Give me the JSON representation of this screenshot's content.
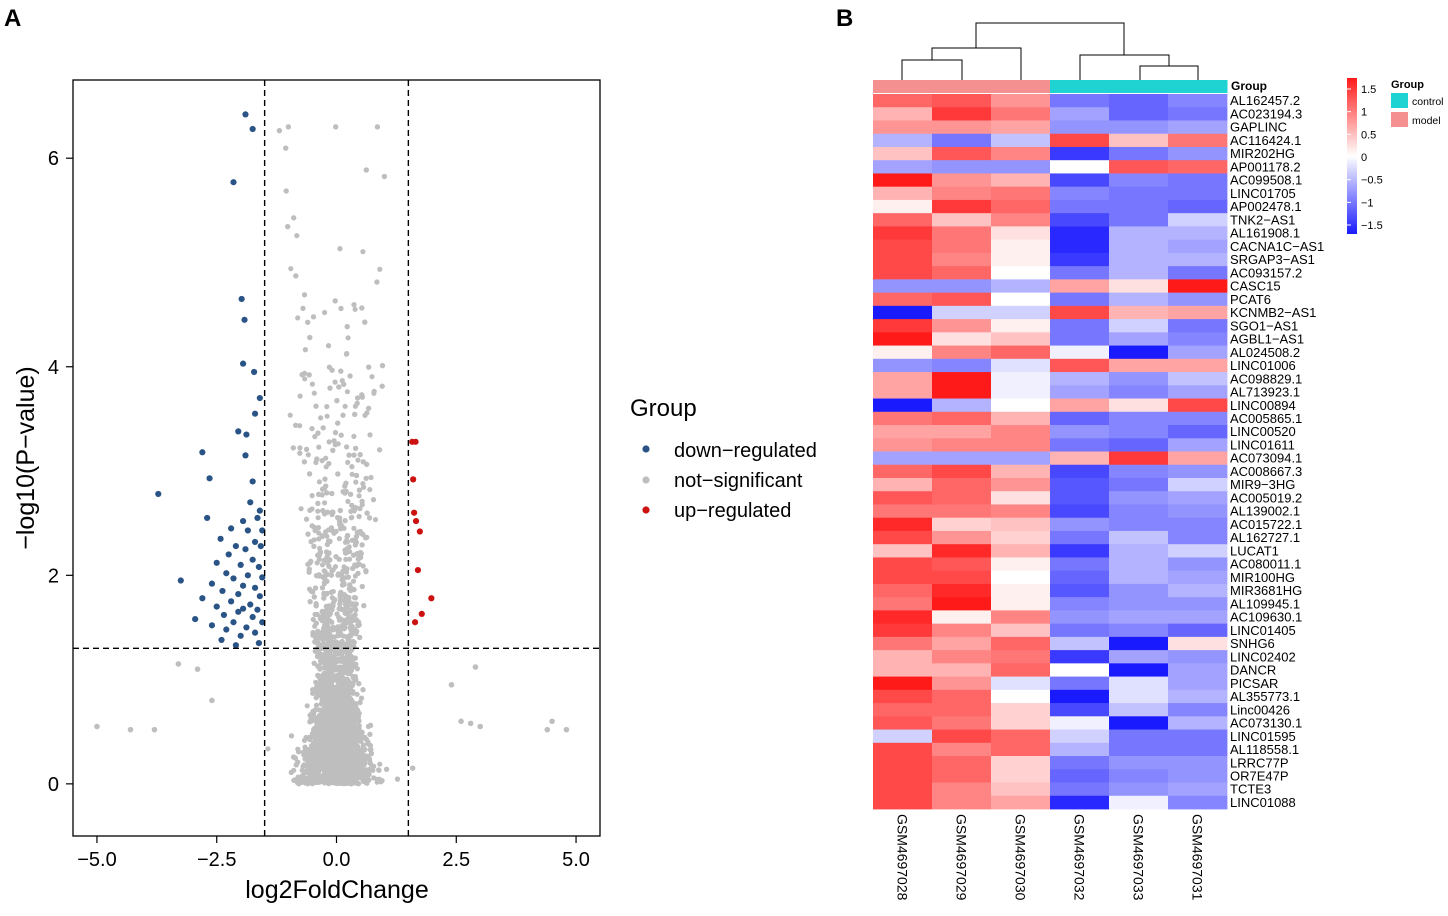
{
  "panels": {
    "a_label": "A",
    "b_label": "B"
  },
  "colors": {
    "down": "#2b5486",
    "ns": "#bebebe",
    "up": "#cc1111",
    "control": "#1fd3d3",
    "model": "#f59090",
    "heat_low": "#1a1aff",
    "heat_mid": "#ffffff",
    "heat_high": "#ff1a1a"
  },
  "chart_data": [
    {
      "type": "scatter",
      "title": "",
      "xlabel": "log2FoldChange",
      "ylabel": "−log10(P−value)",
      "xlim": [
        -5.5,
        5.5
      ],
      "ylim": [
        -0.5,
        6.75
      ],
      "xticks": [
        -5,
        -2.5,
        0,
        2.5,
        5
      ],
      "xtick_labels": [
        "−5.0",
        "−2.5",
        "0.0",
        "2.5",
        "5.0"
      ],
      "yticks": [
        0,
        2,
        4,
        6
      ],
      "ytick_labels": [
        "0",
        "2",
        "4",
        "6"
      ],
      "thresholds": {
        "fc_low": -1.5,
        "fc_high": 1.5,
        "p": 1.3
      },
      "legend": {
        "title": "Group",
        "position": "right",
        "entries": [
          "down−regulated",
          "not−significant",
          "up−regulated"
        ]
      },
      "series": [
        {
          "name": "down−regulated",
          "points": [
            [
              -1.9,
              6.42
            ],
            [
              -1.75,
              6.28
            ],
            [
              -2.15,
              5.77
            ],
            [
              -1.98,
              4.65
            ],
            [
              -1.92,
              4.45
            ],
            [
              -1.95,
              4.03
            ],
            [
              -1.72,
              3.95
            ],
            [
              -1.6,
              3.7
            ],
            [
              -1.7,
              3.55
            ],
            [
              -2.05,
              3.38
            ],
            [
              -1.88,
              3.35
            ],
            [
              -2.8,
              3.18
            ],
            [
              -1.9,
              3.15
            ],
            [
              -2.65,
              2.93
            ],
            [
              -1.75,
              2.9
            ],
            [
              -3.72,
              2.78
            ],
            [
              -1.8,
              2.7
            ],
            [
              -1.6,
              2.62
            ],
            [
              -2.7,
              2.55
            ],
            [
              -1.95,
              2.52
            ],
            [
              -1.65,
              2.55
            ],
            [
              -2.2,
              2.45
            ],
            [
              -1.85,
              2.43
            ],
            [
              -1.55,
              2.43
            ],
            [
              -2.42,
              2.35
            ],
            [
              -1.7,
              2.32
            ],
            [
              -2.1,
              2.28
            ],
            [
              -1.9,
              2.25
            ],
            [
              -1.58,
              2.28
            ],
            [
              -2.25,
              2.2
            ],
            [
              -1.75,
              2.15
            ],
            [
              -2.5,
              2.12
            ],
            [
              -2.0,
              2.1
            ],
            [
              -1.62,
              2.08
            ],
            [
              -2.3,
              2.02
            ],
            [
              -1.85,
              2.0
            ],
            [
              -2.15,
              1.97
            ],
            [
              -1.55,
              1.98
            ],
            [
              -3.25,
              1.95
            ],
            [
              -2.6,
              1.92
            ],
            [
              -1.95,
              1.9
            ],
            [
              -1.7,
              1.88
            ],
            [
              -2.38,
              1.85
            ],
            [
              -2.05,
              1.82
            ],
            [
              -1.6,
              1.8
            ],
            [
              -2.8,
              1.78
            ],
            [
              -2.2,
              1.75
            ],
            [
              -1.8,
              1.72
            ],
            [
              -2.5,
              1.7
            ],
            [
              -1.95,
              1.68
            ],
            [
              -1.65,
              1.67
            ],
            [
              -2.05,
              1.65
            ],
            [
              -2.35,
              1.62
            ],
            [
              -1.75,
              1.6
            ],
            [
              -2.95,
              1.58
            ],
            [
              -2.15,
              1.55
            ],
            [
              -1.55,
              1.55
            ],
            [
              -2.6,
              1.52
            ],
            [
              -1.88,
              1.5
            ],
            [
              -2.3,
              1.48
            ],
            [
              -2.0,
              1.42
            ],
            [
              -1.7,
              1.45
            ],
            [
              -2.4,
              1.38
            ],
            [
              -1.62,
              1.35
            ],
            [
              -2.1,
              1.33
            ]
          ]
        },
        {
          "name": "up−regulated",
          "points": [
            [
              1.58,
              3.28
            ],
            [
              1.65,
              3.28
            ],
            [
              1.6,
              2.92
            ],
            [
              1.62,
              2.6
            ],
            [
              1.66,
              2.52
            ],
            [
              1.74,
              2.42
            ],
            [
              1.7,
              2.05
            ],
            [
              1.98,
              1.78
            ],
            [
              1.78,
              1.63
            ],
            [
              1.64,
              1.55
            ]
          ]
        },
        {
          "name": "not−significant",
          "generated": true,
          "note": "dense volcano cloud bounded by |log2FC| < 1.5 or −log10(P) < 1.3",
          "outliers": [
            [
              -5.0,
              0.55
            ],
            [
              -4.3,
              0.52
            ],
            [
              -3.8,
              0.52
            ],
            [
              -3.3,
              1.15
            ],
            [
              -2.9,
              1.1
            ],
            [
              -2.6,
              0.8
            ],
            [
              4.4,
              0.52
            ],
            [
              4.8,
              0.52
            ],
            [
              4.5,
              0.6
            ],
            [
              3.0,
              0.55
            ],
            [
              2.8,
              0.58
            ],
            [
              2.6,
              0.6
            ],
            [
              2.9,
              1.12
            ],
            [
              2.4,
              0.95
            ]
          ]
        }
      ]
    },
    {
      "type": "heatmap",
      "columns": [
        "GSM4697028",
        "GSM4697029",
        "GSM4697030",
        "GSM4697032",
        "GSM4697033",
        "GSM4697031"
      ],
      "column_groups": [
        "model",
        "model",
        "model",
        "control",
        "control",
        "control"
      ],
      "rows": [
        "AL162457.2",
        "AC023194.3",
        "GAPLINC",
        "AC116424.1",
        "MIR202HG",
        "AP001178.2",
        "AC099508.1",
        "LINC01705",
        "AP002478.1",
        "TNK2−AS1",
        "AL161908.1",
        "CACNA1C−AS1",
        "SRGAP3−AS1",
        "AC093157.2",
        "CASC15",
        "PCAT6",
        "KCNMB2−AS1",
        "SGO1−AS1",
        "AGBL1−AS1",
        "AL024508.2",
        "LINC01006",
        "AC098829.1",
        "AL713923.1",
        "LINC00894",
        "AC005865.1",
        "LINC00520",
        "LINC01611",
        "AC073094.1",
        "AC008667.3",
        "MIR9−3HG",
        "AC005019.2",
        "AL139002.1",
        "AC015722.1",
        "AL162727.1",
        "LUCAT1",
        "AC080011.1",
        "MIR100HG",
        "MIR3681HG",
        "AL109945.1",
        "AC109630.1",
        "LINC01405",
        "SNHG6",
        "LINC02402",
        "DANCR",
        "PICSAR",
        "AL355773.1",
        "Linc00426",
        "AC073130.1",
        "LINC01595",
        "AL118558.1",
        "LRRC77P",
        "OR7E47P",
        "TCTE3",
        "LINC01088"
      ],
      "values": [
        [
          1.0,
          1.1,
          0.7,
          -0.9,
          -1.0,
          -0.8
        ],
        [
          0.5,
          1.3,
          0.9,
          -0.6,
          -1.0,
          -0.9
        ],
        [
          0.7,
          0.7,
          0.6,
          -0.7,
          -0.7,
          -0.6
        ],
        [
          -0.5,
          -0.9,
          -0.4,
          1.2,
          0.4,
          0.9
        ],
        [
          0.4,
          1.1,
          0.8,
          -1.3,
          -0.9,
          -0.7
        ],
        [
          -0.6,
          -0.7,
          -0.7,
          0.0,
          1.1,
          1.0
        ],
        [
          1.5,
          0.7,
          0.5,
          -1.2,
          -0.8,
          -0.9
        ],
        [
          0.5,
          0.8,
          0.9,
          -0.8,
          -0.9,
          -0.9
        ],
        [
          0.1,
          1.3,
          1.0,
          -0.9,
          -0.9,
          -1.0
        ],
        [
          1.0,
          0.4,
          0.8,
          -1.2,
          -0.9,
          -0.3
        ],
        [
          1.3,
          0.9,
          0.2,
          -1.4,
          -0.5,
          -0.5
        ],
        [
          1.2,
          0.9,
          0.1,
          -1.4,
          -0.5,
          -0.6
        ],
        [
          1.2,
          0.8,
          0.1,
          -1.3,
          -0.5,
          -0.5
        ],
        [
          1.2,
          1.0,
          0.0,
          -0.9,
          -0.5,
          -0.9
        ],
        [
          -0.7,
          -0.7,
          -0.5,
          0.6,
          0.2,
          1.5
        ],
        [
          1.0,
          1.1,
          0.0,
          -0.9,
          -0.5,
          -0.7
        ],
        [
          -1.5,
          -0.3,
          -0.3,
          1.2,
          0.5,
          0.6
        ],
        [
          1.3,
          0.7,
          0.1,
          -0.9,
          -0.3,
          -0.9
        ],
        [
          1.6,
          0.2,
          0.4,
          -0.9,
          -0.6,
          -0.8
        ],
        [
          0.1,
          0.8,
          1.0,
          -0.1,
          -1.6,
          -0.6
        ],
        [
          -0.7,
          -0.8,
          -0.2,
          1.1,
          0.6,
          0.6
        ],
        [
          0.6,
          1.6,
          -0.1,
          -0.5,
          -0.7,
          -0.4
        ],
        [
          0.6,
          1.6,
          -0.1,
          -0.6,
          -0.8,
          -0.6
        ],
        [
          -1.6,
          -0.5,
          0.0,
          0.6,
          0.2,
          1.2
        ],
        [
          0.9,
          1.0,
          0.5,
          -1.0,
          -0.8,
          -0.8
        ],
        [
          0.6,
          0.6,
          0.8,
          -0.7,
          -0.8,
          -1.0
        ],
        [
          0.7,
          0.8,
          0.8,
          -0.9,
          -1.0,
          -0.6
        ],
        [
          -0.6,
          -0.6,
          -0.6,
          0.5,
          1.3,
          0.6
        ],
        [
          1.0,
          1.2,
          0.5,
          -1.2,
          -0.8,
          -0.7
        ],
        [
          0.5,
          1.0,
          0.7,
          -1.1,
          -0.9,
          -0.3
        ],
        [
          1.1,
          1.0,
          0.2,
          -1.1,
          -0.7,
          -0.6
        ],
        [
          0.9,
          0.9,
          0.8,
          -1.2,
          -0.8,
          -0.7
        ],
        [
          1.4,
          0.3,
          0.4,
          -0.7,
          -0.8,
          -0.8
        ],
        [
          1.2,
          0.7,
          0.3,
          -0.9,
          -0.4,
          -0.8
        ],
        [
          0.4,
          1.4,
          0.5,
          -1.3,
          -0.5,
          -0.3
        ],
        [
          1.2,
          1.1,
          0.1,
          -0.9,
          -0.5,
          -0.7
        ],
        [
          1.2,
          1.2,
          0.0,
          -1.0,
          -0.5,
          -0.6
        ],
        [
          1.0,
          1.4,
          0.1,
          -1.1,
          -0.7,
          -0.5
        ],
        [
          0.9,
          1.5,
          0.1,
          -0.8,
          -0.7,
          -0.7
        ],
        [
          1.4,
          0.1,
          0.8,
          -0.7,
          -0.6,
          -0.6
        ],
        [
          1.3,
          0.8,
          0.4,
          -0.9,
          -0.8,
          -1.0
        ],
        [
          0.9,
          0.6,
          1.0,
          -0.4,
          -1.6,
          0.2
        ],
        [
          0.5,
          0.8,
          0.9,
          -1.3,
          -0.6,
          -0.7
        ],
        [
          0.5,
          0.5,
          1.0,
          0.0,
          -1.5,
          -0.6
        ],
        [
          1.5,
          0.7,
          -0.2,
          -0.9,
          -0.2,
          -0.6
        ],
        [
          1.2,
          1.0,
          0.0,
          -1.5,
          -0.2,
          -0.5
        ],
        [
          1.0,
          1.0,
          0.3,
          -1.2,
          -0.4,
          -0.8
        ],
        [
          1.1,
          0.9,
          0.3,
          -0.1,
          -1.5,
          -0.5
        ],
        [
          -0.3,
          1.2,
          1.0,
          -0.3,
          -0.9,
          -0.9
        ],
        [
          1.2,
          0.8,
          1.0,
          -0.5,
          -0.9,
          -0.9
        ],
        [
          1.2,
          1.0,
          0.3,
          -0.9,
          -0.7,
          -0.7
        ],
        [
          1.2,
          1.0,
          0.3,
          -1.0,
          -0.8,
          -0.7
        ],
        [
          1.2,
          0.8,
          0.4,
          -0.9,
          -0.7,
          -0.6
        ],
        [
          1.2,
          0.8,
          0.6,
          -1.4,
          -0.1,
          -0.8
        ]
      ],
      "row_annotation_label": "Group",
      "scale": {
        "min": -1.5,
        "max": 1.5,
        "ticks": [
          1.5,
          1,
          0.5,
          0,
          -0.5,
          -1,
          -1.5
        ],
        "tick_labels": [
          "1.5",
          "1",
          "0.5",
          "0",
          "−0.5",
          "−1",
          "−1.5"
        ]
      },
      "legend": {
        "title": "Group",
        "entries": [
          "control",
          "model"
        ],
        "position": "top-right"
      }
    }
  ]
}
